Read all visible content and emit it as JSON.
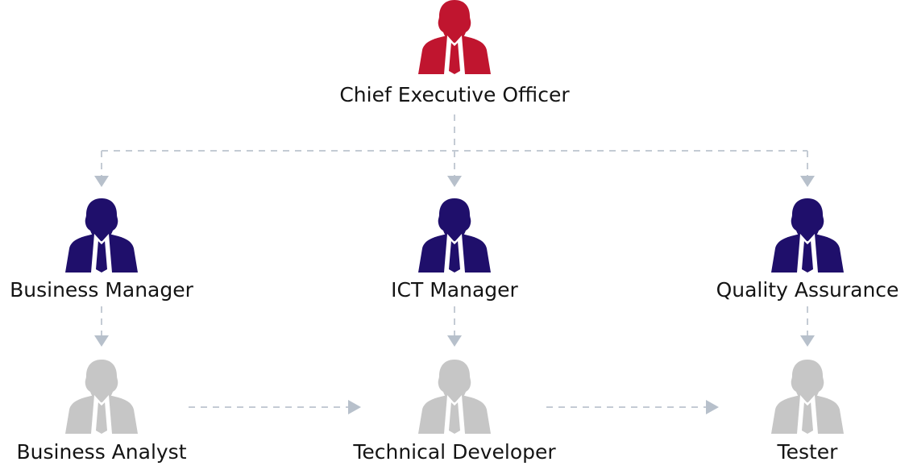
{
  "diagram": {
    "type": "org-chart",
    "colors": {
      "executive": "#c0152f",
      "manager": "#1f0f6b",
      "staff": "#c6c6c6",
      "connector": "#c4cbd4",
      "arrowhead": "#b7c0cb",
      "label_text": "#141414",
      "shirt": "#ffffff"
    },
    "nodes": {
      "ceo": {
        "label": "Chief Executive Officer",
        "level": "executive",
        "icon": "person-icon"
      },
      "business_manager": {
        "label": "Business Manager",
        "level": "manager",
        "icon": "person-icon"
      },
      "ict_manager": {
        "label": "ICT Manager",
        "level": "manager",
        "icon": "person-icon"
      },
      "quality_assurance": {
        "label": "Quality Assurance",
        "level": "manager",
        "icon": "person-icon"
      },
      "business_analyst": {
        "label": "Business Analyst",
        "level": "staff",
        "icon": "person-icon"
      },
      "technical_developer": {
        "label": "Technical Developer",
        "level": "staff",
        "icon": "person-icon"
      },
      "tester": {
        "label": "Tester",
        "level": "staff",
        "icon": "person-icon"
      }
    },
    "edges": [
      {
        "from": "Chief Executive Officer",
        "to": "Business Manager",
        "style": "dashed"
      },
      {
        "from": "Chief Executive Officer",
        "to": "ICT Manager",
        "style": "dashed"
      },
      {
        "from": "Chief Executive Officer",
        "to": "Quality Assurance",
        "style": "dashed"
      },
      {
        "from": "Business Manager",
        "to": "Business Analyst",
        "style": "dashed"
      },
      {
        "from": "ICT Manager",
        "to": "Technical Developer",
        "style": "dashed"
      },
      {
        "from": "Quality Assurance",
        "to": "Tester",
        "style": "dashed"
      },
      {
        "from": "Business Analyst",
        "to": "Technical Developer",
        "style": "dashed"
      },
      {
        "from": "Technical Developer",
        "to": "Tester",
        "style": "dashed"
      }
    ]
  }
}
